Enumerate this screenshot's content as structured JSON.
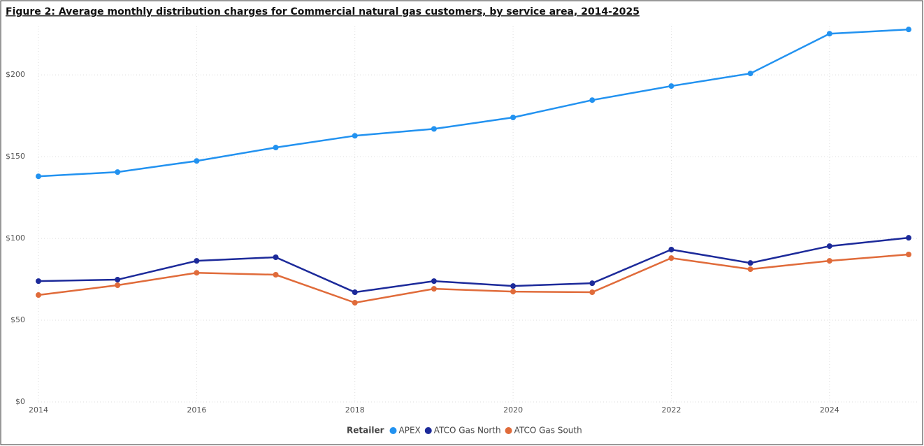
{
  "chart_data": {
    "type": "line",
    "title": "Figure 2: Average monthly distribution charges for Commercial natural gas customers, by service area, 2014-2025",
    "x": [
      2014,
      2015,
      2016,
      2017,
      2018,
      2019,
      2020,
      2021,
      2022,
      2023,
      2024,
      2025
    ],
    "series": [
      {
        "name": "APEX",
        "color": "#2292f0",
        "values": [
          138,
          140.6,
          147.4,
          155.6,
          162.8,
          167,
          174,
          184.6,
          193.2,
          200.9,
          225.2,
          227.8
        ]
      },
      {
        "name": "ATCO Gas North",
        "color": "#1c2a9a",
        "values": [
          73.9,
          74.8,
          86.3,
          88.5,
          67.1,
          73.9,
          70.9,
          72.6,
          93.2,
          85,
          95.3,
          100.4
        ]
      },
      {
        "name": "ATCO Gas South",
        "color": "#e06b3a",
        "values": [
          65.4,
          71.4,
          79,
          77.8,
          60.7,
          69.2,
          67.5,
          67.1,
          88,
          81.2,
          86.3,
          90.2
        ]
      }
    ],
    "legend_title": "Retailer",
    "xlim": [
      2014,
      2025
    ],
    "xticks": [
      2014,
      2016,
      2018,
      2020,
      2022,
      2024
    ],
    "ylim": [
      0,
      230
    ],
    "yticks": [
      {
        "value": 0,
        "label": "$0"
      },
      {
        "value": 50,
        "label": "$50"
      },
      {
        "value": 100,
        "label": "$100"
      },
      {
        "value": 150,
        "label": "$150"
      },
      {
        "value": 200,
        "label": "$200"
      }
    ],
    "grid": true
  }
}
